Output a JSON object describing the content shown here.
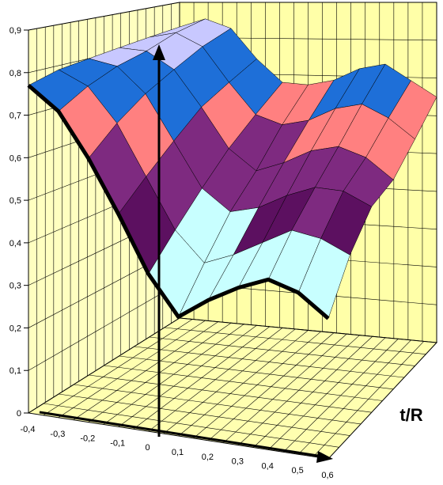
{
  "chart_data": {
    "type": "surface",
    "title": "",
    "z_axis": {
      "ticks": [
        "0",
        "0,1",
        "0,2",
        "0,3",
        "0,4",
        "0,5",
        "0,6",
        "0,7",
        "0,8",
        "0,9"
      ],
      "range": [
        0,
        0.9
      ]
    },
    "x_axis": {
      "ticks": [
        "-0,4",
        "-0,3",
        "-0,2",
        "-0,1",
        "0",
        "0,1",
        "0,2",
        "0,3",
        "0,4",
        "0,5",
        "0,6"
      ],
      "range": [
        -0.4,
        0.6
      ]
    },
    "depth_axis": {
      "label": "t/R"
    },
    "band_colors": [
      "#c8ffff",
      "#5c1060",
      "#7e2a80",
      "#ff8080",
      "#1e6fd8",
      "#c8c8ff",
      "#0a0a80"
    ],
    "band_edges": [
      0.45,
      0.5,
      0.6,
      0.7,
      0.8,
      0.9
    ],
    "front_edge": [
      0.77,
      0.72,
      0.62,
      0.5,
      0.37,
      0.28,
      0.33,
      0.37,
      0.4,
      0.38,
      0.33
    ],
    "back_edge": [
      0.83,
      0.86,
      0.84,
      0.76,
      0.7,
      0.7,
      0.72,
      0.76,
      0.78,
      0.74,
      0.7
    ],
    "rows": [
      [
        0.77,
        0.72,
        0.62,
        0.5,
        0.37,
        0.28,
        0.33,
        0.37,
        0.4,
        0.38,
        0.33
      ],
      [
        0.79,
        0.76,
        0.68,
        0.56,
        0.44,
        0.37,
        0.4,
        0.44,
        0.48,
        0.47,
        0.44
      ],
      [
        0.8,
        0.79,
        0.73,
        0.62,
        0.51,
        0.46,
        0.48,
        0.52,
        0.55,
        0.55,
        0.52
      ],
      [
        0.81,
        0.81,
        0.77,
        0.68,
        0.58,
        0.53,
        0.56,
        0.6,
        0.62,
        0.6,
        0.55
      ],
      [
        0.82,
        0.84,
        0.81,
        0.72,
        0.64,
        0.62,
        0.64,
        0.68,
        0.7,
        0.67,
        0.62
      ],
      [
        0.83,
        0.86,
        0.84,
        0.76,
        0.7,
        0.7,
        0.72,
        0.76,
        0.78,
        0.74,
        0.7
      ]
    ]
  }
}
